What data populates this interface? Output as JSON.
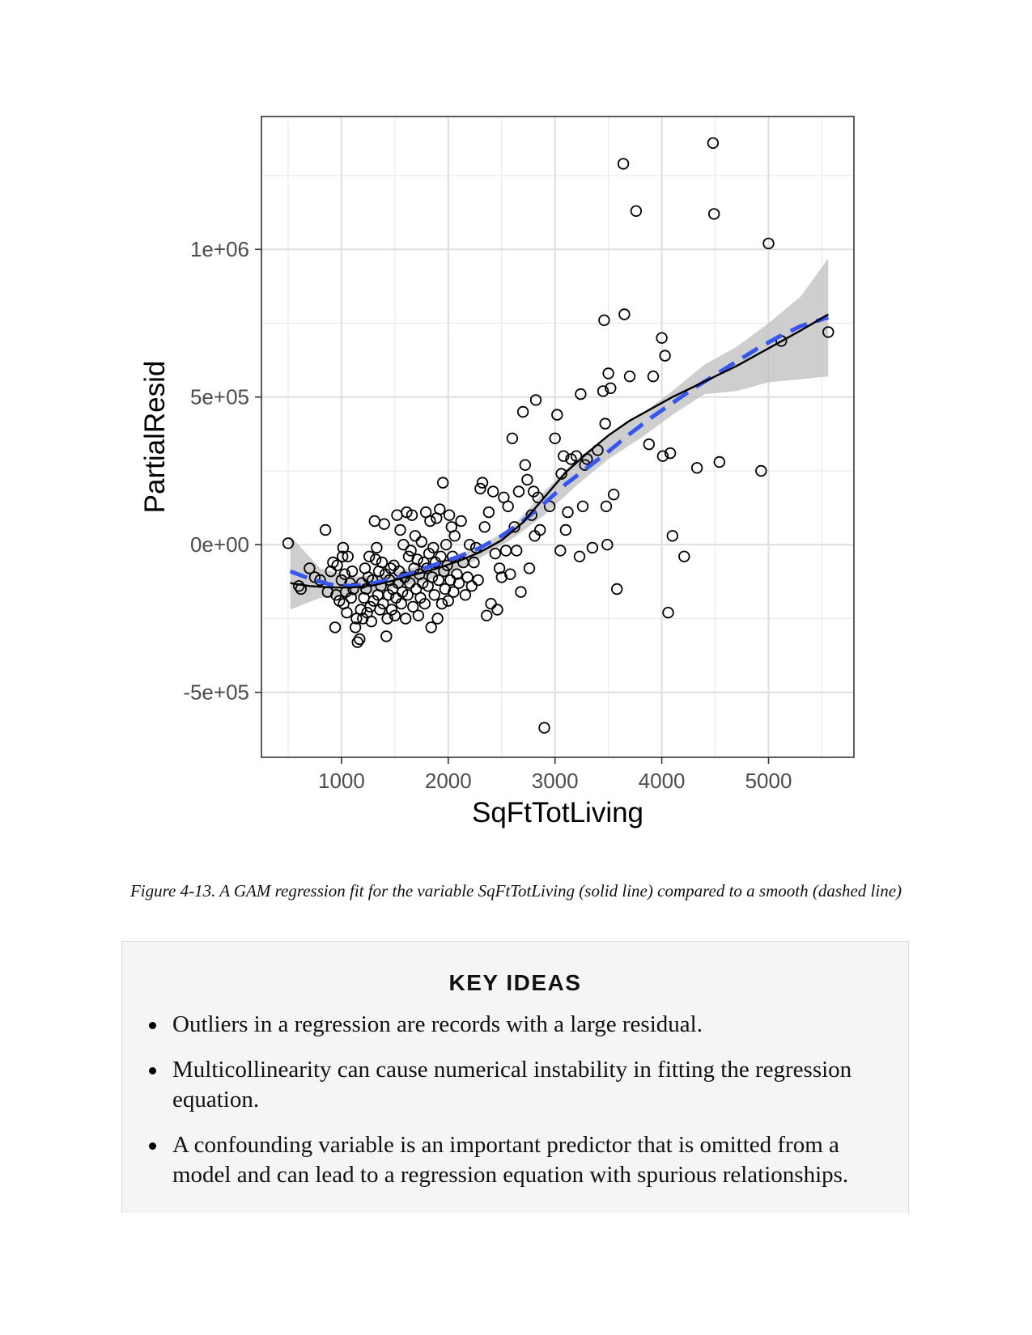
{
  "chart_data": {
    "type": "scatter",
    "xlabel": "SqFtTotLiving",
    "ylabel": "PartialResid",
    "xlim": [
      250,
      5800
    ],
    "ylim": [
      -720000,
      1450000
    ],
    "x_ticks": [
      1000,
      2000,
      3000,
      4000,
      5000
    ],
    "x_tick_labels": [
      "1000",
      "2000",
      "3000",
      "4000",
      "5000"
    ],
    "y_ticks": [
      -500000,
      0,
      500000,
      1000000
    ],
    "y_tick_labels": [
      "-5e+05",
      "0e+00",
      "5e+05",
      "1e+06"
    ],
    "grid": true,
    "points": [
      [
        500,
        5000
      ],
      [
        600,
        -140000
      ],
      [
        620,
        -150000
      ],
      [
        700,
        -80000
      ],
      [
        750,
        -110000
      ],
      [
        800,
        -120000
      ],
      [
        850,
        50000
      ],
      [
        870,
        -160000
      ],
      [
        900,
        -90000
      ],
      [
        920,
        -60000
      ],
      [
        940,
        -280000
      ],
      [
        950,
        -170000
      ],
      [
        960,
        -70000
      ],
      [
        980,
        -190000
      ],
      [
        1000,
        -120000
      ],
      [
        1010,
        -40000
      ],
      [
        1015,
        -10000
      ],
      [
        1020,
        -200000
      ],
      [
        1030,
        -100000
      ],
      [
        1040,
        -160000
      ],
      [
        1050,
        -230000
      ],
      [
        1060,
        -40000
      ],
      [
        1080,
        -130000
      ],
      [
        1090,
        -180000
      ],
      [
        1100,
        -90000
      ],
      [
        1110,
        -150000
      ],
      [
        1130,
        -280000
      ],
      [
        1140,
        -250000
      ],
      [
        1150,
        -330000
      ],
      [
        1170,
        -320000
      ],
      [
        1180,
        -220000
      ],
      [
        1190,
        -130000
      ],
      [
        1200,
        -250000
      ],
      [
        1210,
        -180000
      ],
      [
        1220,
        -80000
      ],
      [
        1230,
        -150000
      ],
      [
        1240,
        -230000
      ],
      [
        1250,
        -110000
      ],
      [
        1260,
        -40000
      ],
      [
        1270,
        -210000
      ],
      [
        1280,
        -260000
      ],
      [
        1290,
        -120000
      ],
      [
        1300,
        -190000
      ],
      [
        1310,
        80000
      ],
      [
        1320,
        -50000
      ],
      [
        1330,
        -10000
      ],
      [
        1340,
        -170000
      ],
      [
        1350,
        -90000
      ],
      [
        1360,
        -220000
      ],
      [
        1370,
        -140000
      ],
      [
        1380,
        -60000
      ],
      [
        1390,
        -200000
      ],
      [
        1400,
        70000
      ],
      [
        1410,
        -100000
      ],
      [
        1420,
        -310000
      ],
      [
        1430,
        -250000
      ],
      [
        1440,
        -170000
      ],
      [
        1450,
        -120000
      ],
      [
        1460,
        -80000
      ],
      [
        1470,
        -220000
      ],
      [
        1480,
        -150000
      ],
      [
        1490,
        -70000
      ],
      [
        1500,
        -240000
      ],
      [
        1510,
        -180000
      ],
      [
        1520,
        100000
      ],
      [
        1530,
        -130000
      ],
      [
        1540,
        -90000
      ],
      [
        1550,
        50000
      ],
      [
        1560,
        -200000
      ],
      [
        1570,
        -160000
      ],
      [
        1580,
        0
      ],
      [
        1590,
        -110000
      ],
      [
        1600,
        -250000
      ],
      [
        1610,
        110000
      ],
      [
        1620,
        -170000
      ],
      [
        1630,
        -40000
      ],
      [
        1640,
        -130000
      ],
      [
        1650,
        -20000
      ],
      [
        1660,
        100000
      ],
      [
        1670,
        -210000
      ],
      [
        1680,
        -80000
      ],
      [
        1690,
        30000
      ],
      [
        1700,
        -150000
      ],
      [
        1710,
        -50000
      ],
      [
        1720,
        -240000
      ],
      [
        1730,
        -100000
      ],
      [
        1740,
        -180000
      ],
      [
        1750,
        10000
      ],
      [
        1760,
        -130000
      ],
      [
        1770,
        -60000
      ],
      [
        1780,
        -200000
      ],
      [
        1790,
        110000
      ],
      [
        1800,
        -80000
      ],
      [
        1810,
        -140000
      ],
      [
        1820,
        -30000
      ],
      [
        1830,
        80000
      ],
      [
        1840,
        -280000
      ],
      [
        1850,
        -110000
      ],
      [
        1860,
        -10000
      ],
      [
        1870,
        -170000
      ],
      [
        1880,
        -60000
      ],
      [
        1890,
        90000
      ],
      [
        1900,
        -250000
      ],
      [
        1910,
        -120000
      ],
      [
        1920,
        120000
      ],
      [
        1930,
        -40000
      ],
      [
        1940,
        -200000
      ],
      [
        1950,
        210000
      ],
      [
        1960,
        -90000
      ],
      [
        1970,
        -150000
      ],
      [
        1980,
        0
      ],
      [
        1990,
        -70000
      ],
      [
        2000,
        -190000
      ],
      [
        2010,
        100000
      ],
      [
        2020,
        -120000
      ],
      [
        2030,
        60000
      ],
      [
        2040,
        -40000
      ],
      [
        2050,
        -160000
      ],
      [
        2060,
        30000
      ],
      [
        2080,
        -100000
      ],
      [
        2100,
        -130000
      ],
      [
        2120,
        80000
      ],
      [
        2140,
        -60000
      ],
      [
        2160,
        -170000
      ],
      [
        2180,
        -110000
      ],
      [
        2200,
        0
      ],
      [
        2220,
        -140000
      ],
      [
        2240,
        -60000
      ],
      [
        2260,
        -10000
      ],
      [
        2280,
        -120000
      ],
      [
        2300,
        190000
      ],
      [
        2320,
        210000
      ],
      [
        2340,
        60000
      ],
      [
        2360,
        -240000
      ],
      [
        2380,
        110000
      ],
      [
        2400,
        -200000
      ],
      [
        2420,
        180000
      ],
      [
        2440,
        -30000
      ],
      [
        2460,
        -220000
      ],
      [
        2480,
        -80000
      ],
      [
        2500,
        -110000
      ],
      [
        2520,
        160000
      ],
      [
        2540,
        -20000
      ],
      [
        2560,
        130000
      ],
      [
        2580,
        -100000
      ],
      [
        2600,
        360000
      ],
      [
        2620,
        60000
      ],
      [
        2640,
        -20000
      ],
      [
        2660,
        180000
      ],
      [
        2680,
        -160000
      ],
      [
        2700,
        450000
      ],
      [
        2720,
        270000
      ],
      [
        2740,
        220000
      ],
      [
        2760,
        -80000
      ],
      [
        2780,
        100000
      ],
      [
        2800,
        180000
      ],
      [
        2810,
        30000
      ],
      [
        2820,
        490000
      ],
      [
        2840,
        160000
      ],
      [
        2860,
        50000
      ],
      [
        2900,
        -620000
      ],
      [
        2950,
        130000
      ],
      [
        3000,
        360000
      ],
      [
        3020,
        440000
      ],
      [
        3050,
        -20000
      ],
      [
        3060,
        240000
      ],
      [
        3080,
        300000
      ],
      [
        3100,
        50000
      ],
      [
        3120,
        110000
      ],
      [
        3150,
        290000
      ],
      [
        3200,
        300000
      ],
      [
        3230,
        -40000
      ],
      [
        3240,
        510000
      ],
      [
        3260,
        130000
      ],
      [
        3280,
        270000
      ],
      [
        3300,
        290000
      ],
      [
        3350,
        -10000
      ],
      [
        3400,
        320000
      ],
      [
        3450,
        520000
      ],
      [
        3460,
        760000
      ],
      [
        3470,
        410000
      ],
      [
        3480,
        130000
      ],
      [
        3490,
        0
      ],
      [
        3500,
        580000
      ],
      [
        3520,
        530000
      ],
      [
        3550,
        170000
      ],
      [
        3580,
        -150000
      ],
      [
        3650,
        780000
      ],
      [
        3700,
        570000
      ],
      [
        3760,
        1130000
      ],
      [
        3880,
        340000
      ],
      [
        3920,
        570000
      ],
      [
        4000,
        700000
      ],
      [
        4010,
        300000
      ],
      [
        4030,
        640000
      ],
      [
        4060,
        -230000
      ],
      [
        4080,
        310000
      ],
      [
        4100,
        30000
      ],
      [
        4210,
        -40000
      ],
      [
        4330,
        260000
      ],
      [
        4480,
        1360000
      ],
      [
        4490,
        1120000
      ],
      [
        4540,
        280000
      ],
      [
        4930,
        250000
      ],
      [
        5000,
        1020000
      ],
      [
        5120,
        690000
      ],
      [
        5560,
        720000
      ],
      [
        3640,
        1290000
      ]
    ],
    "gam_fit": [
      [
        520,
        -130000
      ],
      [
        700,
        -140000
      ],
      [
        900,
        -145000
      ],
      [
        1100,
        -145000
      ],
      [
        1300,
        -138000
      ],
      [
        1500,
        -120000
      ],
      [
        1700,
        -100000
      ],
      [
        1900,
        -80000
      ],
      [
        2100,
        -55000
      ],
      [
        2300,
        -25000
      ],
      [
        2500,
        15000
      ],
      [
        2700,
        75000
      ],
      [
        2900,
        160000
      ],
      [
        3100,
        245000
      ],
      [
        3300,
        310000
      ],
      [
        3500,
        370000
      ],
      [
        3700,
        420000
      ],
      [
        3900,
        460000
      ],
      [
        4100,
        500000
      ],
      [
        4300,
        535000
      ],
      [
        4500,
        570000
      ],
      [
        4700,
        605000
      ],
      [
        4900,
        645000
      ],
      [
        5100,
        685000
      ],
      [
        5300,
        725000
      ],
      [
        5560,
        780000
      ]
    ],
    "smooth_fit": [
      [
        520,
        -90000
      ],
      [
        700,
        -115000
      ],
      [
        900,
        -135000
      ],
      [
        1100,
        -140000
      ],
      [
        1300,
        -130000
      ],
      [
        1500,
        -115000
      ],
      [
        1700,
        -90000
      ],
      [
        1900,
        -65000
      ],
      [
        2100,
        -40000
      ],
      [
        2300,
        -10000
      ],
      [
        2500,
        30000
      ],
      [
        2700,
        80000
      ],
      [
        2900,
        140000
      ],
      [
        3100,
        205000
      ],
      [
        3300,
        260000
      ],
      [
        3500,
        315000
      ],
      [
        3700,
        375000
      ],
      [
        3900,
        430000
      ],
      [
        4100,
        480000
      ],
      [
        4300,
        530000
      ],
      [
        4500,
        575000
      ],
      [
        4700,
        620000
      ],
      [
        4900,
        665000
      ],
      [
        5100,
        705000
      ],
      [
        5300,
        740000
      ],
      [
        5560,
        770000
      ]
    ],
    "confidence_band": {
      "x": [
        520,
        800,
        1100,
        1400,
        1700,
        2000,
        2300,
        2600,
        2900,
        3200,
        3500,
        3800,
        4100,
        4400,
        4700,
        5000,
        5300,
        5560
      ],
      "upper": [
        30000,
        -80000,
        -110000,
        -100000,
        -75000,
        -50000,
        -5000,
        60000,
        180000,
        290000,
        370000,
        440000,
        520000,
        610000,
        670000,
        750000,
        840000,
        970000
      ],
      "lower": [
        -220000,
        -180000,
        -175000,
        -155000,
        -130000,
        -100000,
        -45000,
        20000,
        100000,
        200000,
        290000,
        360000,
        440000,
        510000,
        520000,
        550000,
        560000,
        570000
      ]
    },
    "point_color": "#000000",
    "gam_color": "#000000",
    "smooth_color": "#3557f0",
    "band_color": "#bdbdbd"
  },
  "caption": "Figure 4-13. A GAM regression fit for the variable SqFtTotLiving (solid line) compared to a smooth (dashed line)",
  "key_ideas": {
    "title": "KEY IDEAS",
    "items": [
      "Outliers in a regression are records with a large residual.",
      "Multicollinearity can cause numerical instability in fitting the regression equation.",
      "A confounding variable is an important predictor that is omitted from a model and can lead to a regression equation with spurious relationships."
    ]
  }
}
